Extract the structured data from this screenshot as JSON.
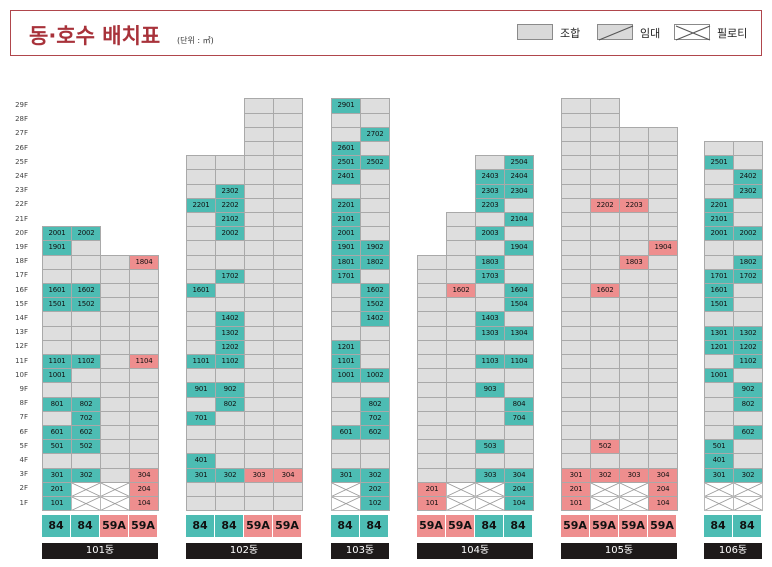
{
  "header": {
    "title": "동·호수 배치표",
    "unit": "(단위 : ㎡)",
    "legend": [
      {
        "label": "조합",
        "kind": "member",
        "icon": "plain-grey-box-icon"
      },
      {
        "label": "임대",
        "kind": "rental",
        "icon": "diagonal-slash-box-icon"
      },
      {
        "label": "필로티",
        "kind": "piloti",
        "icon": "cross-x-box-icon"
      }
    ]
  },
  "colors": {
    "member": "#dedede",
    "teal": "#4dbcb3",
    "red": "#ee8e8e",
    "brand": "#a8323a",
    "dark": "#1e1a1a"
  },
  "floor_labels": [
    "29F",
    "28F",
    "27F",
    "26F",
    "25F",
    "24F",
    "23F",
    "22F",
    "21F",
    "20F",
    "19F",
    "18F",
    "17F",
    "16F",
    "15F",
    "14F",
    "13F",
    "12F",
    "11F",
    "10F",
    "9F",
    "8F",
    "7F",
    "6F",
    "5F",
    "4F",
    "3F",
    "2F",
    "1F"
  ],
  "buildings": [
    {
      "label": "101동",
      "top_floor": 20,
      "units": [
        {
          "size": "84",
          "color": "teal"
        },
        {
          "size": "84",
          "color": "teal"
        },
        {
          "size": "59A",
          "color": "red"
        },
        {
          "size": "59A",
          "color": "red"
        }
      ],
      "column_tops": [
        20,
        20,
        18,
        18
      ],
      "piloti": [
        [
          2,
          2
        ],
        [
          2,
          3
        ],
        [
          1,
          2
        ],
        [
          1,
          3
        ]
      ],
      "cells": [
        [
          20,
          1,
          "2001",
          "t"
        ],
        [
          20,
          2,
          "2002",
          "t"
        ],
        [
          19,
          1,
          "1901",
          "t"
        ],
        [
          18,
          4,
          "1804",
          "r"
        ],
        [
          16,
          1,
          "1601",
          "t"
        ],
        [
          16,
          2,
          "1602",
          "t"
        ],
        [
          15,
          1,
          "1501",
          "t"
        ],
        [
          15,
          2,
          "1502",
          "t"
        ],
        [
          11,
          1,
          "1101",
          "t"
        ],
        [
          11,
          2,
          "1102",
          "t"
        ],
        [
          11,
          4,
          "1104",
          "r"
        ],
        [
          10,
          1,
          "1001",
          "t"
        ],
        [
          8,
          1,
          "801",
          "t"
        ],
        [
          8,
          2,
          "802",
          "t"
        ],
        [
          7,
          2,
          "702",
          "t"
        ],
        [
          6,
          1,
          "601",
          "t"
        ],
        [
          6,
          2,
          "602",
          "t"
        ],
        [
          5,
          1,
          "501",
          "t"
        ],
        [
          5,
          2,
          "502",
          "t"
        ],
        [
          3,
          1,
          "301",
          "t"
        ],
        [
          3,
          2,
          "302",
          "t"
        ],
        [
          3,
          4,
          "304",
          "r"
        ],
        [
          2,
          1,
          "201",
          "t"
        ],
        [
          2,
          4,
          "204",
          "r"
        ],
        [
          1,
          1,
          "101",
          "t"
        ],
        [
          1,
          4,
          "104",
          "r"
        ]
      ]
    },
    {
      "label": "102동",
      "top_floor": 29,
      "units": [
        {
          "size": "84",
          "color": "teal"
        },
        {
          "size": "84",
          "color": "teal"
        },
        {
          "size": "59A",
          "color": "red"
        },
        {
          "size": "59A",
          "color": "red"
        }
      ],
      "column_tops": [
        25,
        25,
        29,
        29
      ],
      "piloti": [],
      "cells": [
        [
          23,
          2,
          "2302",
          "t"
        ],
        [
          22,
          1,
          "2201",
          "t"
        ],
        [
          22,
          2,
          "2202",
          "t"
        ],
        [
          21,
          2,
          "2102",
          "t"
        ],
        [
          20,
          2,
          "2002",
          "t"
        ],
        [
          17,
          2,
          "1702",
          "t"
        ],
        [
          16,
          1,
          "1601",
          "t"
        ],
        [
          14,
          2,
          "1402",
          "t"
        ],
        [
          13,
          2,
          "1302",
          "t"
        ],
        [
          12,
          2,
          "1202",
          "t"
        ],
        [
          11,
          1,
          "1101",
          "t"
        ],
        [
          11,
          2,
          "1102",
          "t"
        ],
        [
          9,
          1,
          "901",
          "t"
        ],
        [
          9,
          2,
          "902",
          "t"
        ],
        [
          8,
          2,
          "802",
          "t"
        ],
        [
          7,
          1,
          "701",
          "t"
        ],
        [
          4,
          1,
          "401",
          "t"
        ],
        [
          3,
          1,
          "301",
          "t"
        ],
        [
          3,
          2,
          "302",
          "t"
        ],
        [
          3,
          3,
          "303",
          "r"
        ],
        [
          3,
          4,
          "304",
          "r"
        ]
      ]
    },
    {
      "label": "103동",
      "top_floor": 29,
      "units": [
        {
          "size": "84",
          "color": "teal"
        },
        {
          "size": "84",
          "color": "teal"
        }
      ],
      "column_tops": [
        29,
        29
      ],
      "piloti": [
        [
          2,
          1
        ],
        [
          1,
          1
        ]
      ],
      "cells": [
        [
          29,
          1,
          "2901",
          "t"
        ],
        [
          27,
          2,
          "2702",
          "t"
        ],
        [
          26,
          1,
          "2601",
          "t"
        ],
        [
          25,
          1,
          "2501",
          "t"
        ],
        [
          25,
          2,
          "2502",
          "t"
        ],
        [
          24,
          1,
          "2401",
          "t"
        ],
        [
          22,
          1,
          "2201",
          "t"
        ],
        [
          21,
          1,
          "2101",
          "t"
        ],
        [
          20,
          1,
          "2001",
          "t"
        ],
        [
          19,
          1,
          "1901",
          "t"
        ],
        [
          19,
          2,
          "1902",
          "t"
        ],
        [
          18,
          1,
          "1801",
          "t"
        ],
        [
          18,
          2,
          "1802",
          "t"
        ],
        [
          17,
          1,
          "1701",
          "t"
        ],
        [
          16,
          2,
          "1602",
          "t"
        ],
        [
          15,
          2,
          "1502",
          "t"
        ],
        [
          14,
          2,
          "1402",
          "t"
        ],
        [
          12,
          1,
          "1201",
          "t"
        ],
        [
          11,
          1,
          "1101",
          "t"
        ],
        [
          10,
          1,
          "1001",
          "t"
        ],
        [
          10,
          2,
          "1002",
          "t"
        ],
        [
          8,
          2,
          "802",
          "t"
        ],
        [
          7,
          2,
          "702",
          "t"
        ],
        [
          6,
          1,
          "601",
          "t"
        ],
        [
          6,
          2,
          "602",
          "t"
        ],
        [
          3,
          1,
          "301",
          "t"
        ],
        [
          3,
          2,
          "302",
          "t"
        ],
        [
          2,
          2,
          "202",
          "t"
        ],
        [
          1,
          2,
          "102",
          "t"
        ]
      ]
    },
    {
      "label": "104동",
      "top_floor": 25,
      "units": [
        {
          "size": "59A",
          "color": "red"
        },
        {
          "size": "59A",
          "color": "red"
        },
        {
          "size": "84",
          "color": "teal"
        },
        {
          "size": "84",
          "color": "teal"
        }
      ],
      "column_tops": [
        18,
        21,
        25,
        25
      ],
      "piloti": [
        [
          2,
          2
        ],
        [
          2,
          3
        ],
        [
          1,
          2
        ],
        [
          1,
          3
        ]
      ],
      "cells": [
        [
          25,
          4,
          "2504",
          "t"
        ],
        [
          24,
          3,
          "2403",
          "t"
        ],
        [
          24,
          4,
          "2404",
          "t"
        ],
        [
          23,
          3,
          "2303",
          "t"
        ],
        [
          23,
          4,
          "2304",
          "t"
        ],
        [
          22,
          3,
          "2203",
          "t"
        ],
        [
          21,
          4,
          "2104",
          "t"
        ],
        [
          20,
          3,
          "2003",
          "t"
        ],
        [
          19,
          4,
          "1904",
          "t"
        ],
        [
          18,
          3,
          "1803",
          "t"
        ],
        [
          17,
          3,
          "1703",
          "t"
        ],
        [
          16,
          2,
          "1602",
          "r"
        ],
        [
          16,
          4,
          "1604",
          "t"
        ],
        [
          15,
          4,
          "1504",
          "t"
        ],
        [
          14,
          3,
          "1403",
          "t"
        ],
        [
          13,
          3,
          "1303",
          "t"
        ],
        [
          13,
          4,
          "1304",
          "t"
        ],
        [
          11,
          3,
          "1103",
          "t"
        ],
        [
          11,
          4,
          "1104",
          "t"
        ],
        [
          9,
          3,
          "903",
          "t"
        ],
        [
          8,
          4,
          "804",
          "t"
        ],
        [
          7,
          4,
          "704",
          "t"
        ],
        [
          5,
          3,
          "503",
          "t"
        ],
        [
          3,
          3,
          "303",
          "t"
        ],
        [
          3,
          4,
          "304",
          "t"
        ],
        [
          2,
          1,
          "201",
          "r"
        ],
        [
          2,
          4,
          "204",
          "t"
        ],
        [
          1,
          1,
          "101",
          "r"
        ],
        [
          1,
          4,
          "104",
          "t"
        ]
      ]
    },
    {
      "label": "105동",
      "top_floor": 29,
      "units": [
        {
          "size": "59A",
          "color": "red"
        },
        {
          "size": "59A",
          "color": "red"
        },
        {
          "size": "59A",
          "color": "red"
        },
        {
          "size": "59A",
          "color": "red"
        }
      ],
      "column_tops": [
        29,
        29,
        27,
        27
      ],
      "piloti": [
        [
          2,
          2
        ],
        [
          2,
          3
        ],
        [
          1,
          2
        ],
        [
          1,
          3
        ]
      ],
      "cells": [
        [
          22,
          2,
          "2202",
          "r"
        ],
        [
          22,
          3,
          "2203",
          "r"
        ],
        [
          19,
          4,
          "1904",
          "r"
        ],
        [
          18,
          3,
          "1803",
          "r"
        ],
        [
          16,
          2,
          "1602",
          "r"
        ],
        [
          5,
          2,
          "502",
          "r"
        ],
        [
          3,
          1,
          "301",
          "r"
        ],
        [
          3,
          2,
          "302",
          "r"
        ],
        [
          3,
          3,
          "303",
          "r"
        ],
        [
          3,
          4,
          "304",
          "r"
        ],
        [
          2,
          1,
          "201",
          "r"
        ],
        [
          2,
          4,
          "204",
          "r"
        ],
        [
          1,
          1,
          "101",
          "r"
        ],
        [
          1,
          4,
          "104",
          "r"
        ]
      ]
    },
    {
      "label": "106동",
      "top_floor": 26,
      "units": [
        {
          "size": "84",
          "color": "teal"
        },
        {
          "size": "84",
          "color": "teal"
        }
      ],
      "column_tops": [
        26,
        26
      ],
      "piloti": [
        [
          2,
          1
        ],
        [
          2,
          2
        ],
        [
          1,
          1
        ],
        [
          1,
          2
        ]
      ],
      "cells": [
        [
          25,
          1,
          "2501",
          "t"
        ],
        [
          24,
          2,
          "2402",
          "t"
        ],
        [
          23,
          2,
          "2302",
          "t"
        ],
        [
          22,
          1,
          "2201",
          "t"
        ],
        [
          21,
          1,
          "2101",
          "t"
        ],
        [
          20,
          1,
          "2001",
          "t"
        ],
        [
          20,
          2,
          "2002",
          "t"
        ],
        [
          18,
          2,
          "1802",
          "t"
        ],
        [
          17,
          1,
          "1701",
          "t"
        ],
        [
          17,
          2,
          "1702",
          "t"
        ],
        [
          16,
          1,
          "1601",
          "t"
        ],
        [
          15,
          1,
          "1501",
          "t"
        ],
        [
          13,
          1,
          "1301",
          "t"
        ],
        [
          13,
          2,
          "1302",
          "t"
        ],
        [
          12,
          1,
          "1201",
          "t"
        ],
        [
          12,
          2,
          "1202",
          "t"
        ],
        [
          11,
          2,
          "1102",
          "t"
        ],
        [
          10,
          1,
          "1001",
          "t"
        ],
        [
          9,
          2,
          "902",
          "t"
        ],
        [
          8,
          2,
          "802",
          "t"
        ],
        [
          6,
          2,
          "602",
          "t"
        ],
        [
          5,
          1,
          "501",
          "t"
        ],
        [
          4,
          1,
          "401",
          "t"
        ],
        [
          3,
          1,
          "301",
          "t"
        ],
        [
          3,
          2,
          "302",
          "t"
        ]
      ]
    }
  ]
}
